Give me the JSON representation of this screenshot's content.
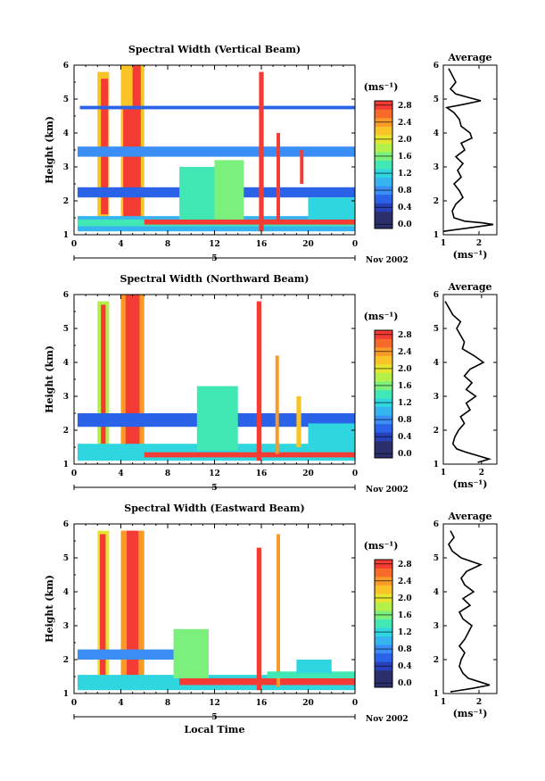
{
  "chart_data": [
    {
      "type": "heatmap",
      "title": "Spectral Width (Vertical Beam)",
      "ylabel": "Height (km)",
      "y_ticks": [
        "1",
        "2",
        "3",
        "4",
        "5",
        "6"
      ],
      "ylim": [
        1,
        6
      ],
      "x_ticks": [
        "0",
        "4",
        "8",
        "12",
        "16",
        "20",
        "0"
      ],
      "xlim": [
        0,
        24
      ],
      "date_day": "5",
      "date_month": "Nov 2002",
      "colorbar": {
        "unit": "(ms⁻¹)",
        "ticks": [
          "0.0",
          "0.4",
          "0.8",
          "1.2",
          "1.6",
          "2.0",
          "2.4",
          "2.8"
        ],
        "range": [
          0,
          3.0
        ]
      },
      "profile": {
        "title": "Average",
        "xlabel": "(ms⁻¹)",
        "x_ticks": [
          "1",
          "2"
        ],
        "xlim": [
          1,
          2.5
        ],
        "y_ticks": [
          "1",
          "2",
          "3",
          "4",
          "5",
          "6"
        ],
        "heights": [
          1.1,
          1.2,
          1.3,
          1.35,
          1.4,
          1.5,
          1.7,
          1.9,
          2.1,
          2.3,
          2.5,
          2.7,
          2.9,
          3.1,
          3.3,
          3.5,
          3.7,
          3.85,
          4.0,
          4.2,
          4.4,
          4.6,
          4.75,
          4.85,
          4.95,
          5.05,
          5.15,
          5.3,
          5.5,
          5.7,
          5.9
        ],
        "values": [
          1.0,
          1.7,
          2.4,
          2.1,
          1.6,
          1.3,
          1.25,
          1.35,
          1.55,
          1.45,
          1.3,
          1.5,
          1.4,
          1.55,
          1.35,
          1.6,
          1.5,
          1.8,
          1.75,
          1.5,
          1.45,
          1.3,
          1.1,
          1.6,
          2.05,
          1.7,
          1.35,
          1.2,
          1.35,
          1.25,
          1.15
        ]
      },
      "cells": [
        {
          "x0": 2.0,
          "x1": 3.0,
          "y0": 1.1,
          "y1": 5.8,
          "v": 2.0
        },
        {
          "x0": 2.3,
          "x1": 2.9,
          "y0": 1.6,
          "y1": 5.6,
          "v": 2.9
        },
        {
          "x0": 4.0,
          "x1": 6.0,
          "y0": 1.1,
          "y1": 6.0,
          "v": 2.1
        },
        {
          "x0": 4.2,
          "x1": 5.7,
          "y0": 1.2,
          "y1": 4.7,
          "v": 2.9
        },
        {
          "x0": 5.0,
          "x1": 5.7,
          "y0": 4.7,
          "y1": 6.0,
          "v": 2.9
        },
        {
          "x0": 0.3,
          "x1": 24.0,
          "y0": 1.1,
          "y1": 1.55,
          "v": 0.9
        },
        {
          "x0": 0.3,
          "x1": 24.0,
          "y0": 1.25,
          "y1": 1.45,
          "v": 1.4
        },
        {
          "x0": 6.0,
          "x1": 24.0,
          "y0": 1.3,
          "y1": 1.45,
          "v": 2.9
        },
        {
          "x0": 0.3,
          "x1": 24.0,
          "y0": 2.1,
          "y1": 2.4,
          "v": 0.6
        },
        {
          "x0": 0.3,
          "x1": 24.0,
          "y0": 3.3,
          "y1": 3.6,
          "v": 0.7
        },
        {
          "x0": 0.5,
          "x1": 24.0,
          "y0": 4.7,
          "y1": 4.8,
          "v": 0.5
        },
        {
          "x0": 9.0,
          "x1": 12.0,
          "y0": 1.45,
          "y1": 3.0,
          "v": 1.3
        },
        {
          "x0": 12.0,
          "x1": 14.5,
          "y0": 1.45,
          "y1": 3.2,
          "v": 1.5
        },
        {
          "x0": 15.8,
          "x1": 16.2,
          "y0": 1.1,
          "y1": 5.8,
          "v": 2.9
        },
        {
          "x0": 17.3,
          "x1": 17.6,
          "y0": 1.4,
          "y1": 4.0,
          "v": 2.6
        },
        {
          "x0": 19.3,
          "x1": 19.6,
          "y0": 2.5,
          "y1": 3.5,
          "v": 2.7
        },
        {
          "x0": 20.0,
          "x1": 24.0,
          "y0": 1.45,
          "y1": 2.1,
          "v": 1.0
        }
      ]
    },
    {
      "type": "heatmap",
      "title": "Spectral Width (Northward Beam)",
      "ylabel": "Height (km)",
      "y_ticks": [
        "1",
        "2",
        "3",
        "4",
        "5",
        "6"
      ],
      "ylim": [
        1,
        6
      ],
      "x_ticks": [
        "0",
        "4",
        "8",
        "12",
        "16",
        "20",
        "0"
      ],
      "xlim": [
        0,
        24
      ],
      "date_day": "5",
      "date_month": "Nov 2002",
      "colorbar": {
        "unit": "(ms⁻¹)",
        "ticks": [
          "0.0",
          "0.4",
          "0.8",
          "1.2",
          "1.6",
          "2.0",
          "2.4",
          "2.8"
        ],
        "range": [
          0,
          3.0
        ]
      },
      "profile": {
        "title": "Average",
        "xlabel": "(ms⁻¹)",
        "x_ticks": [
          "1",
          "2"
        ],
        "xlim": [
          1,
          2.4
        ],
        "y_ticks": [
          "1",
          "2",
          "3",
          "4",
          "5",
          "6"
        ],
        "heights": [
          1.05,
          1.15,
          1.25,
          1.35,
          1.45,
          1.6,
          1.8,
          2.0,
          2.2,
          2.4,
          2.6,
          2.8,
          3.0,
          3.2,
          3.4,
          3.6,
          3.8,
          4.0,
          4.2,
          4.4,
          4.6,
          4.8,
          5.0,
          5.2,
          5.4,
          5.6,
          5.8
        ],
        "values": [
          1.9,
          2.2,
          1.9,
          1.6,
          1.35,
          1.25,
          1.3,
          1.4,
          1.55,
          1.45,
          1.7,
          1.6,
          1.85,
          1.6,
          1.75,
          1.55,
          1.7,
          2.05,
          1.8,
          1.5,
          1.55,
          1.45,
          1.35,
          1.45,
          1.25,
          1.15,
          1.05
        ]
      },
      "cells": [
        {
          "x0": 2.0,
          "x1": 3.0,
          "y0": 1.1,
          "y1": 5.8,
          "v": 1.6
        },
        {
          "x0": 2.3,
          "x1": 2.7,
          "y0": 1.6,
          "y1": 5.7,
          "v": 2.9
        },
        {
          "x0": 4.0,
          "x1": 6.0,
          "y0": 1.1,
          "y1": 6.0,
          "v": 2.2
        },
        {
          "x0": 4.4,
          "x1": 5.6,
          "y0": 1.2,
          "y1": 6.0,
          "v": 2.9
        },
        {
          "x0": 0.3,
          "x1": 24.0,
          "y0": 1.1,
          "y1": 1.6,
          "v": 1.0
        },
        {
          "x0": 6.0,
          "x1": 24.0,
          "y0": 1.2,
          "y1": 1.35,
          "v": 2.7
        },
        {
          "x0": 0.3,
          "x1": 24.0,
          "y0": 2.1,
          "y1": 2.5,
          "v": 0.6
        },
        {
          "x0": 10.5,
          "x1": 14.0,
          "y0": 1.4,
          "y1": 3.3,
          "v": 1.4
        },
        {
          "x0": 15.6,
          "x1": 16.0,
          "y0": 1.1,
          "y1": 5.8,
          "v": 2.9
        },
        {
          "x0": 17.2,
          "x1": 17.5,
          "y0": 1.3,
          "y1": 4.2,
          "v": 2.4
        },
        {
          "x0": 19.0,
          "x1": 19.4,
          "y0": 1.5,
          "y1": 3.0,
          "v": 2.0
        },
        {
          "x0": 20.0,
          "x1": 24.0,
          "y0": 1.4,
          "y1": 2.2,
          "v": 1.1
        }
      ]
    },
    {
      "type": "heatmap",
      "title": "Spectral Width (Eastward Beam)",
      "ylabel": "Height (km)",
      "y_ticks": [
        "1",
        "2",
        "3",
        "4",
        "5",
        "6"
      ],
      "ylim": [
        1,
        6
      ],
      "x_ticks": [
        "0",
        "4",
        "8",
        "12",
        "16",
        "20",
        "0"
      ],
      "xlim": [
        0,
        24
      ],
      "xlabel": "Local Time",
      "date_day": "5",
      "date_month": "Nov 2002",
      "colorbar": {
        "unit": "(ms⁻¹)",
        "ticks": [
          "0.0",
          "0.4",
          "0.8",
          "1.2",
          "1.6",
          "2.0",
          "2.4",
          "2.8"
        ],
        "range": [
          0,
          3.0
        ]
      },
      "profile": {
        "title": "Average",
        "xlabel": "(ms⁻¹)",
        "x_ticks": [
          "1",
          "2"
        ],
        "xlim": [
          1,
          2.5
        ],
        "y_ticks": [
          "1",
          "2",
          "3",
          "4",
          "5",
          "6"
        ],
        "heights": [
          1.05,
          1.15,
          1.25,
          1.35,
          1.45,
          1.6,
          1.8,
          2.0,
          2.2,
          2.4,
          2.6,
          2.8,
          3.0,
          3.2,
          3.4,
          3.6,
          3.8,
          4.0,
          4.2,
          4.4,
          4.6,
          4.8,
          5.0,
          5.2,
          5.4,
          5.6,
          5.8
        ],
        "values": [
          1.2,
          1.8,
          2.3,
          2.0,
          1.7,
          1.55,
          1.45,
          1.5,
          1.6,
          1.45,
          1.6,
          1.7,
          1.8,
          1.55,
          1.45,
          1.75,
          1.55,
          1.85,
          1.6,
          1.5,
          1.65,
          2.05,
          1.5,
          1.25,
          1.15,
          1.3,
          1.2
        ]
      },
      "cells": [
        {
          "x0": 2.0,
          "x1": 3.0,
          "y0": 1.1,
          "y1": 5.8,
          "v": 1.9
        },
        {
          "x0": 2.2,
          "x1": 2.7,
          "y0": 1.3,
          "y1": 5.7,
          "v": 2.9
        },
        {
          "x0": 4.0,
          "x1": 6.0,
          "y0": 1.1,
          "y1": 5.8,
          "v": 2.3
        },
        {
          "x0": 4.5,
          "x1": 5.5,
          "y0": 1.4,
          "y1": 5.8,
          "v": 2.9
        },
        {
          "x0": 0.3,
          "x1": 24.0,
          "y0": 1.1,
          "y1": 1.55,
          "v": 1.0
        },
        {
          "x0": 9.0,
          "x1": 24.0,
          "y0": 1.25,
          "y1": 1.45,
          "v": 2.8
        },
        {
          "x0": 0.3,
          "x1": 10.0,
          "y0": 2.0,
          "y1": 2.3,
          "v": 0.7
        },
        {
          "x0": 8.5,
          "x1": 11.5,
          "y0": 1.45,
          "y1": 2.9,
          "v": 1.5
        },
        {
          "x0": 15.6,
          "x1": 16.0,
          "y0": 1.1,
          "y1": 5.3,
          "v": 2.9
        },
        {
          "x0": 17.3,
          "x1": 17.6,
          "y0": 1.2,
          "y1": 5.7,
          "v": 2.2
        },
        {
          "x0": 16.5,
          "x1": 24.0,
          "y0": 1.45,
          "y1": 1.65,
          "v": 1.4
        },
        {
          "x0": 19.0,
          "x1": 22.0,
          "y0": 1.6,
          "y1": 2.0,
          "v": 1.2
        }
      ]
    }
  ]
}
